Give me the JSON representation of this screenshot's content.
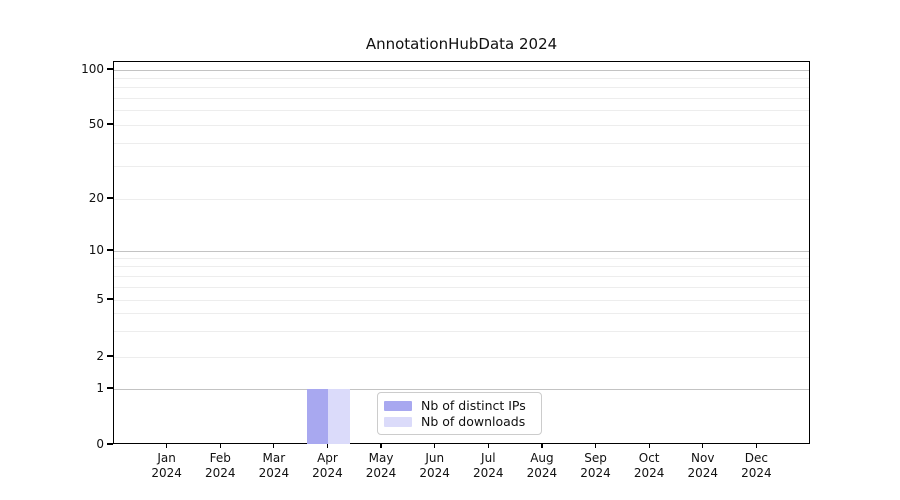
{
  "title": "AnnotationHubData 2024",
  "chart_data": {
    "type": "bar",
    "title": "AnnotationHubData 2024",
    "categories": [
      {
        "month": "Jan",
        "year": "2024"
      },
      {
        "month": "Feb",
        "year": "2024"
      },
      {
        "month": "Mar",
        "year": "2024"
      },
      {
        "month": "Apr",
        "year": "2024"
      },
      {
        "month": "May",
        "year": "2024"
      },
      {
        "month": "Jun",
        "year": "2024"
      },
      {
        "month": "Jul",
        "year": "2024"
      },
      {
        "month": "Aug",
        "year": "2024"
      },
      {
        "month": "Sep",
        "year": "2024"
      },
      {
        "month": "Oct",
        "year": "2024"
      },
      {
        "month": "Nov",
        "year": "2024"
      },
      {
        "month": "Dec",
        "year": "2024"
      }
    ],
    "series": [
      {
        "name": "Nb of distinct IPs",
        "color": "#a8a8f0",
        "values": [
          0,
          0,
          0,
          1,
          0,
          0,
          0,
          0,
          0,
          0,
          0,
          0
        ]
      },
      {
        "name": "Nb of downloads",
        "color": "#dbdbfa",
        "values": [
          0,
          0,
          0,
          1,
          0,
          0,
          0,
          0,
          0,
          0,
          0,
          0
        ]
      }
    ],
    "y_ticks": [
      0,
      1,
      2,
      5,
      10,
      20,
      50,
      100
    ],
    "y_minor_gridlines": [
      3,
      4,
      6,
      7,
      8,
      9,
      30,
      40,
      60,
      70,
      80,
      90
    ],
    "y_major_gridlines": [
      1,
      10,
      100
    ],
    "y_scale": "log above 1, linear 0-1",
    "ylim": [
      0,
      115
    ],
    "xlabel": "",
    "ylabel": "",
    "grid": "horizontal",
    "legend_position": "lower center"
  },
  "legend": {
    "items": [
      {
        "label": "Nb of distinct IPs",
        "color": "#a8a8f0"
      },
      {
        "label": "Nb of downloads",
        "color": "#dbdbfa"
      }
    ]
  },
  "colors": {
    "axis": "#000000",
    "major_grid": "#c3c3c3",
    "minor_grid": "#ededed",
    "legend_border": "#cccccc",
    "background": "#ffffff"
  }
}
